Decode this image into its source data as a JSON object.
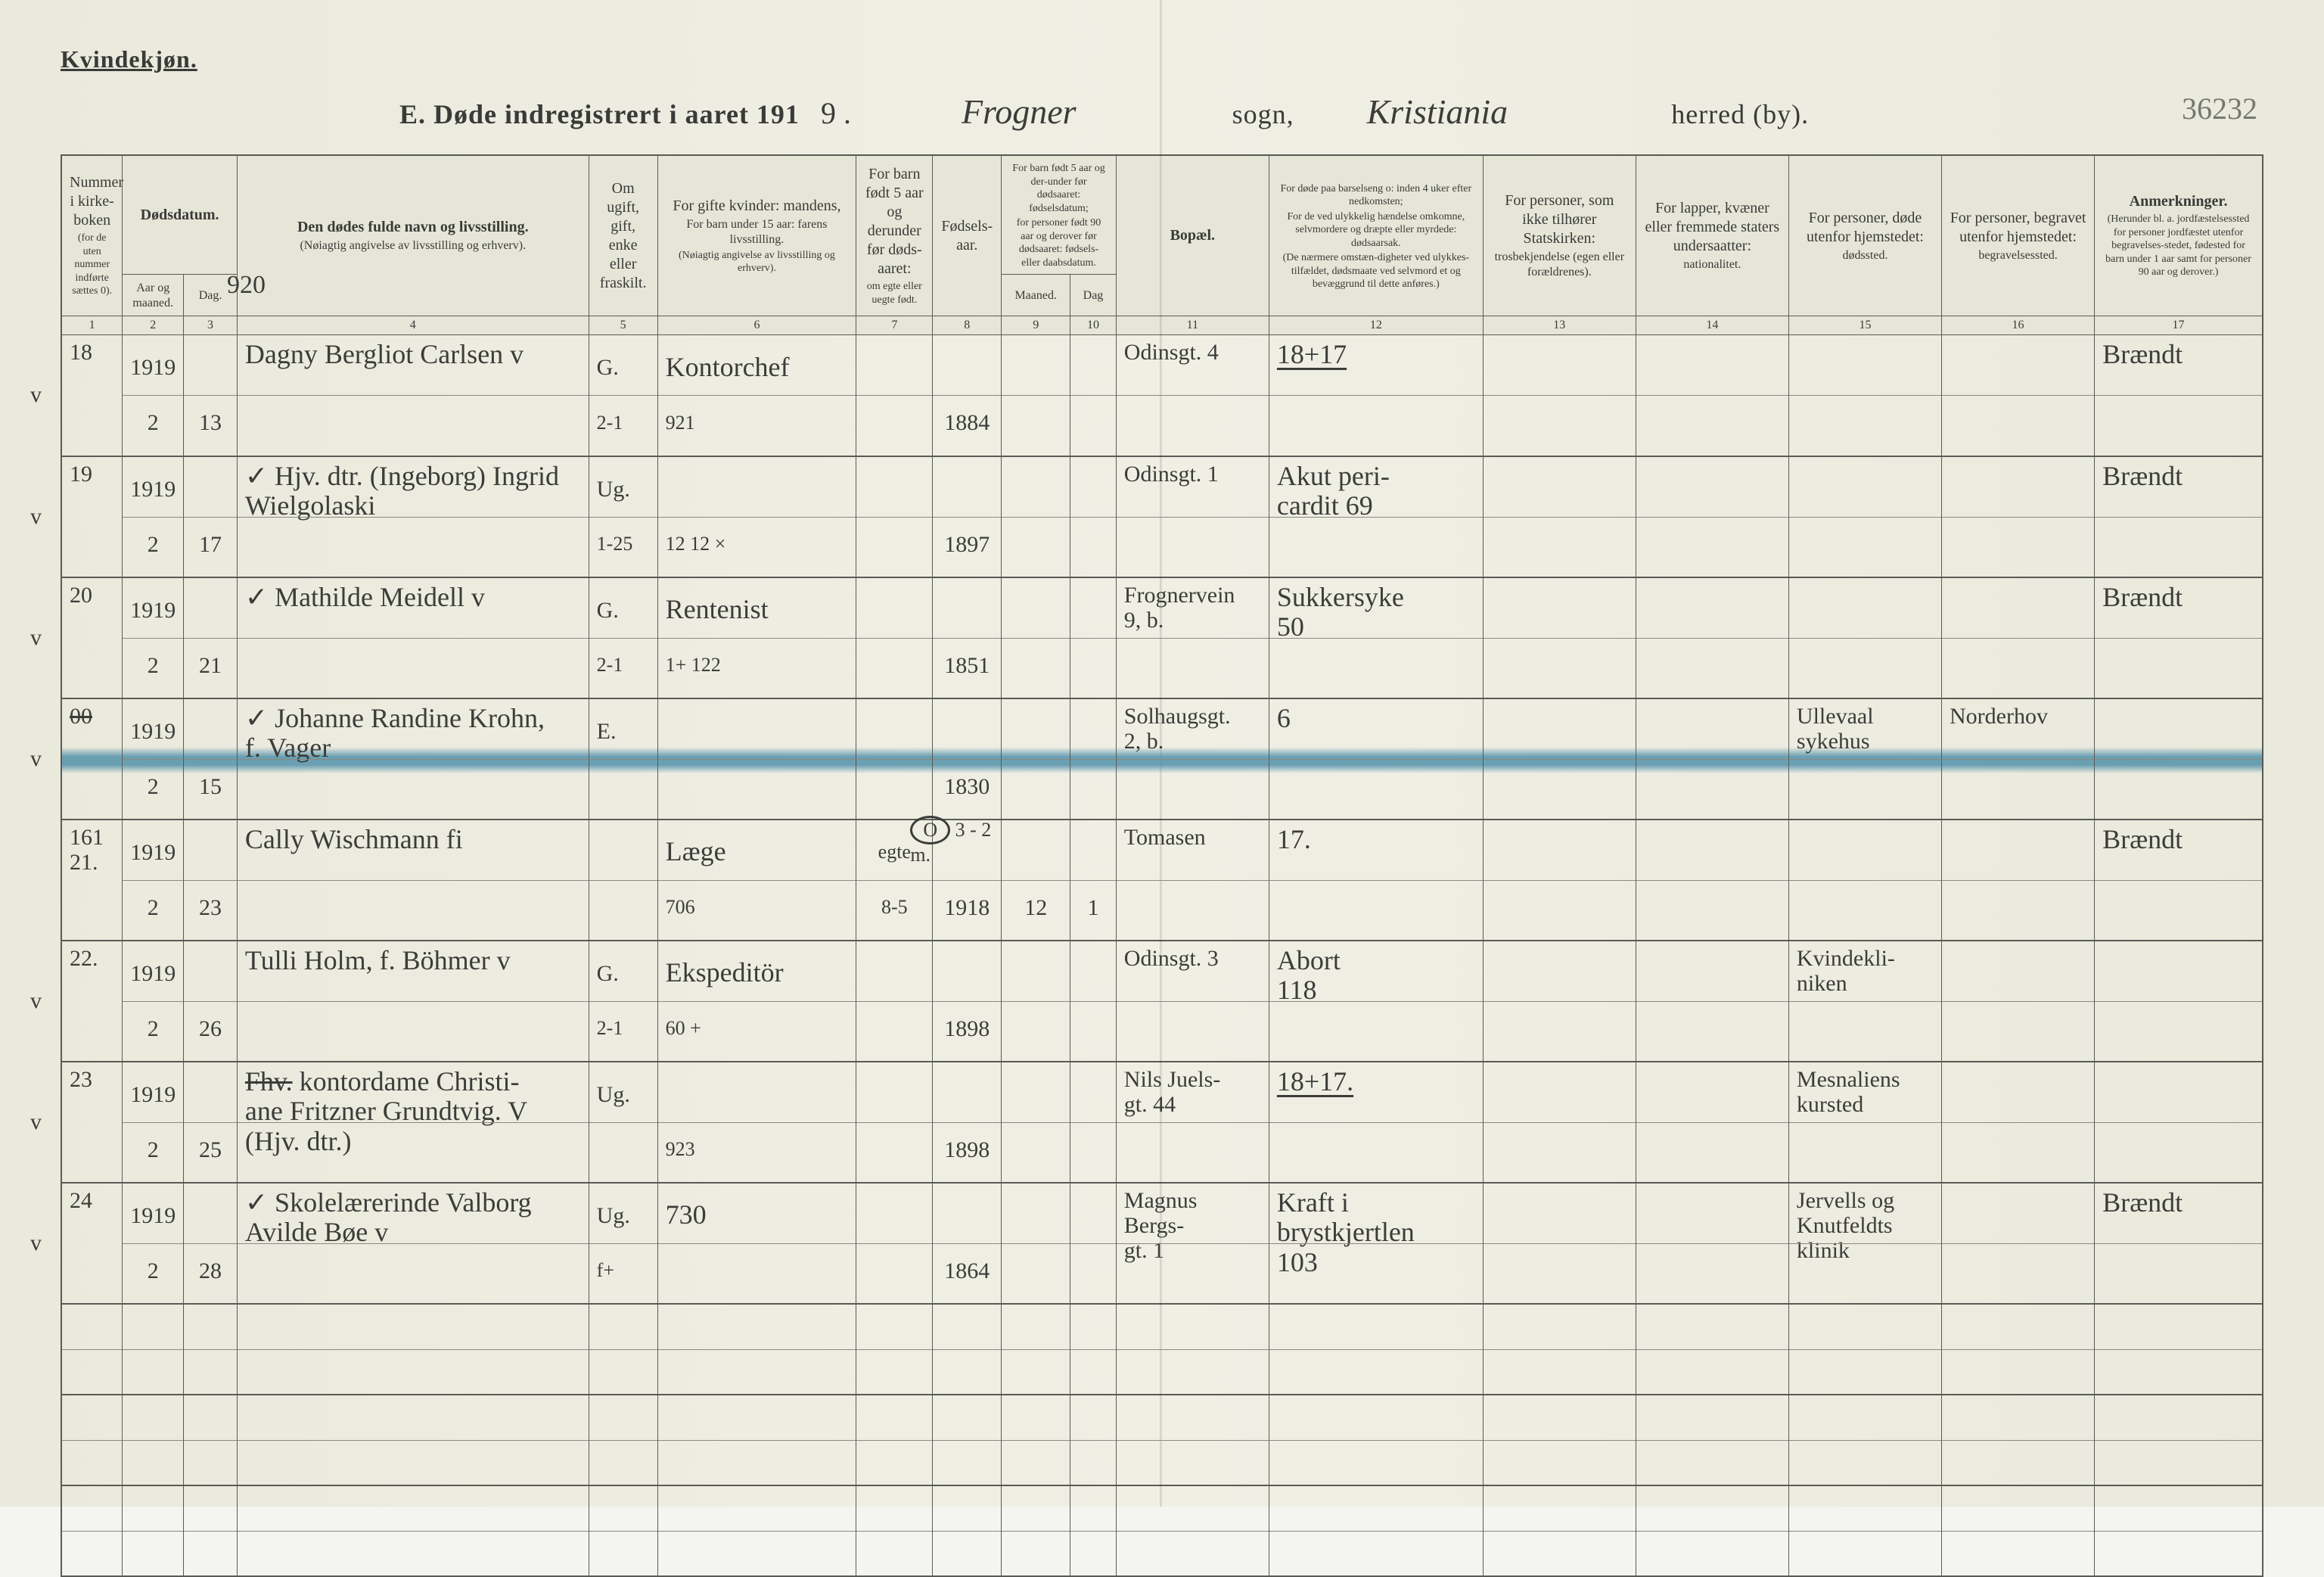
{
  "header": {
    "left_label": "Kvindekjøn.",
    "title_prefix": "E.  Døde indregistrert i aaret 191",
    "year_suffix": "9 .",
    "sogn_label": "sogn,",
    "herred_label": "herred (by).",
    "sogn_value": "Frogner",
    "herred_value": "Kristiania",
    "topright_number": "36232",
    "note_920": "920"
  },
  "columns": {
    "c1": {
      "num": "1",
      "main": "Nummer i kirke-boken",
      "sub": "(for de uten nummer indførte sættes 0)."
    },
    "c2": {
      "num": "2",
      "main": "Dødsdatum.",
      "sub": "Aar og maaned."
    },
    "c3": {
      "num": "3",
      "main": "",
      "sub": "Dag."
    },
    "c4": {
      "num": "4",
      "main": "Den dødes fulde navn og livsstilling.",
      "sub": "(Nøiagtig angivelse av livsstilling og erhverv)."
    },
    "c5": {
      "num": "5",
      "main": "Om ugift, gift, enke eller fraskilt."
    },
    "c6": {
      "num": "6",
      "main": "For gifte kvinder: mandens,",
      "sub": "For barn under 15 aar: farens livsstilling.",
      "sub2": "(Nøiagtig angivelse av livsstilling og erhverv)."
    },
    "c7": {
      "num": "7",
      "main": "For barn født 5 aar og derunder før døds-aaret:",
      "sub": "om egte eller uegte født."
    },
    "c8": {
      "num": "8",
      "main": "Fødsels-aar."
    },
    "c9": {
      "num": "9",
      "main": "For barn født 5 aar og der-under før dødsaaret: fødselsdatum;",
      "sub": "for personer født 90 aar og derover før dødsaaret: fødsels- eller daabsdatum.",
      "subhead": "Maaned."
    },
    "c10": {
      "num": "10",
      "subhead": "Dag"
    },
    "c11": {
      "num": "11",
      "main": "Bopæl."
    },
    "c12": {
      "num": "12",
      "main": "For døde paa barselseng o: inden 4 uker efter nedkomsten;",
      "sub": "For de ved ulykkelig hændelse omkomne, selvmordere og dræpte eller myrdede: dødsaarsak.",
      "sub2": "(De nærmere omstæn-digheter ved ulykkes-tilfældet, dødsmaate ved selvmord et og bevæggrund til dette anføres.)"
    },
    "c13": {
      "num": "13",
      "main": "For personer, som ikke tilhører Statskirken:",
      "sub": "trosbekjendelse (egen eller forældrenes)."
    },
    "c14": {
      "num": "14",
      "main": "For lapper, kvæner eller fremmede staters undersaatter:",
      "sub": "nationalitet."
    },
    "c15": {
      "num": "15",
      "main": "For personer, døde utenfor hjemstedet:",
      "sub": "dødssted."
    },
    "c16": {
      "num": "16",
      "main": "For personer, begravet utenfor hjemstedet:",
      "sub": "begravelsessted."
    },
    "c17": {
      "num": "17",
      "main": "Anmerkninger.",
      "sub": "(Herunder bl. a. jordfæstelsessted for personer jordfæstet utenfor begravelses-stedet, fødested for barn under 1 aar samt for personer 90 aar og derover.)"
    }
  },
  "rows": [
    {
      "check": "v",
      "num": "18",
      "year": "1919",
      "month": "2",
      "day": "13",
      "name": "Dagny Bergliot Carlsen v",
      "status": "G.",
      "status2": "2-1",
      "spouse": "Kontorchef",
      "spouse2": "921",
      "barn": "",
      "fodselsaar": "1884",
      "md": "",
      "dg": "",
      "bopael": "Odinsgt. 4",
      "cause": "18+17",
      "cause_underline": true,
      "c13": "",
      "c14": "",
      "c15": "",
      "c16": "",
      "anm": "Brændt"
    },
    {
      "check": "v",
      "num": "19",
      "year": "1919",
      "month": "2",
      "day": "17",
      "name": "Hjv. dtr. (Ingeborg) Ingrid\nWielgolaski",
      "name_tick": "✓",
      "status": "Ug.",
      "status2": "1-25",
      "spouse": "",
      "spouse2": "12 12 ×",
      "barn": "",
      "fodselsaar": "1897",
      "md": "",
      "dg": "",
      "bopael": "Odinsgt. 1",
      "cause": "Akut peri-\ncardit 69",
      "c13": "",
      "c14": "",
      "c15": "",
      "c16": "",
      "anm": "Brændt"
    },
    {
      "check": "v",
      "num": "20",
      "year": "1919",
      "month": "2",
      "day": "21",
      "name": "Mathilde Meidell   v",
      "name_tick": "✓",
      "status": "G.",
      "status2": "2-1",
      "spouse": "Rentenist",
      "spouse2": "1+ 122",
      "barn": "",
      "fodselsaar": "1851",
      "md": "",
      "dg": "",
      "bopael": "Frognervein\n9, b.",
      "cause": "Sukkersyke\n50",
      "c13": "",
      "c14": "",
      "c15": "",
      "c16": "",
      "anm": "Brændt"
    },
    {
      "check": "v",
      "num": "00",
      "num_strike": true,
      "year": "1919",
      "month": "2",
      "day": "15",
      "name": "Johanne Randine Krohn,\nf. Vager",
      "name_tick": "✓",
      "status": "E.",
      "status2": "",
      "spouse": "",
      "spouse2": "",
      "barn": "",
      "fodselsaar": "1830",
      "md": "",
      "dg": "",
      "bopael": "Solhaugsgt.\n2, b.",
      "cause": "6",
      "c13": "",
      "c14": "",
      "c15": "Ullevaal\nsykehus",
      "c16": "Norderhov",
      "anm": "",
      "highlight": true
    },
    {
      "check": "",
      "num": "21.",
      "num_pre": "161",
      "year": "1919",
      "month": "2",
      "day": "23",
      "name": "Cally Wischmann      fi",
      "status": "",
      "status2": "",
      "spouse": "Læge",
      "spouse2": "706",
      "barn": "egte",
      "barn2": "8-5",
      "fodselsaar": "1918",
      "fodselsaar_pre": "O 3 - 2 m.",
      "md": "12",
      "dg": "1",
      "bopael": "Tomasen",
      "cause": "17.",
      "c13": "",
      "c14": "",
      "c15": "",
      "c16": "",
      "anm": "Brændt"
    },
    {
      "check": "v",
      "num": "22.",
      "year": "1919",
      "month": "2",
      "day": "26",
      "name": "Tulli Holm, f. Böhmer v",
      "status": "G.",
      "status2": "2-1",
      "spouse": "Ekspeditör",
      "spouse2": "60 +",
      "barn": "",
      "fodselsaar": "1898",
      "md": "",
      "dg": "",
      "bopael": "Odinsgt. 3",
      "cause": "Abort\n118",
      "c13": "",
      "c14": "",
      "c15": "Kvindekli-\nniken",
      "c16": "",
      "anm": ""
    },
    {
      "check": "v",
      "num": "23",
      "year": "1919",
      "month": "2",
      "day": "25",
      "name": "Fhv. kontordame Christi-\nane Fritzner Grundtvig. V\n(Hjv. dtr.)",
      "name_strike_first": "Fhv.",
      "status": "Ug.",
      "status2": "",
      "spouse": "",
      "spouse2": "923",
      "barn": "",
      "fodselsaar": "1898",
      "md": "",
      "dg": "",
      "bopael": "Nils Juels-\ngt. 44",
      "cause": "18+17.",
      "cause_underline": true,
      "c13": "",
      "c14": "",
      "c15": "Mesnaliens\nkursted",
      "c16": "",
      "anm": ""
    },
    {
      "check": "v",
      "num": "24",
      "year": "1919",
      "month": "2",
      "day": "28",
      "name": "Skolelærerinde Valborg\nAvilde Bøe           v",
      "name_tick": "✓",
      "status": "Ug.",
      "status2": "f+",
      "spouse": "730",
      "spouse2": "",
      "barn": "",
      "fodselsaar": "1864",
      "md": "",
      "dg": "",
      "bopael": "Magnus Bergs-\ngt. 1",
      "cause": "Kraft i\nbrystkjertlen\n103",
      "c13": "",
      "c14": "",
      "c15": "Jervells og\nKnutfeldts\nklinik",
      "c16": "",
      "anm": "Brændt"
    }
  ],
  "empty_rows": 3
}
